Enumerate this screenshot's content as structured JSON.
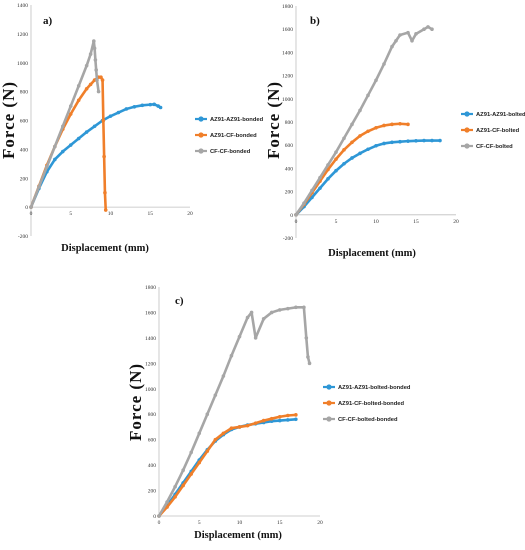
{
  "chart_data": [
    {
      "type": "line",
      "panel_label": "a)",
      "xlabel": "Displacement (mm)",
      "ylabel": "Force (N)",
      "xlim": [
        0,
        20
      ],
      "ylim": [
        -200,
        1400
      ],
      "xticks": [
        0,
        5,
        10,
        15,
        20
      ],
      "yticks": [
        -200,
        0,
        200,
        400,
        600,
        800,
        1000,
        1200,
        1400
      ],
      "legend_position": "right",
      "grid": false,
      "series": [
        {
          "name": "AZ91-AZ91-bonded",
          "color": "#2e97d6",
          "x": [
            0,
            1,
            2,
            3,
            4,
            5,
            6,
            7,
            8,
            9,
            10,
            11,
            12,
            13,
            14,
            15,
            15.5,
            16,
            16.3
          ],
          "y": [
            0,
            130,
            245,
            330,
            385,
            430,
            475,
            520,
            560,
            600,
            630,
            655,
            680,
            695,
            705,
            710,
            712,
            700,
            690
          ]
        },
        {
          "name": "AZ91-CF-bonded",
          "color": "#f07f2a",
          "x": [
            0,
            1,
            2,
            3,
            4,
            5,
            6,
            7,
            7.5,
            8,
            8.5,
            8.8,
            9,
            9.1,
            9.2,
            9.3,
            9.4
          ],
          "y": [
            0,
            145,
            290,
            420,
            540,
            645,
            740,
            820,
            850,
            880,
            900,
            900,
            880,
            600,
            350,
            100,
            -20
          ]
        },
        {
          "name": "CF-CF-bonded",
          "color": "#a6a6a6",
          "x": [
            0,
            1,
            2,
            3,
            4,
            5,
            6,
            7,
            7.5,
            7.9,
            8,
            8.1,
            8.2,
            8.3,
            8.5
          ],
          "y": [
            0,
            140,
            280,
            420,
            560,
            700,
            840,
            980,
            1060,
            1150,
            1100,
            1020,
            950,
            880,
            800
          ]
        }
      ]
    },
    {
      "type": "line",
      "panel_label": "b)",
      "xlabel": "Displacement (mm)",
      "ylabel": "Force (N)",
      "xlim": [
        0,
        20
      ],
      "ylim": [
        -200,
        1800
      ],
      "xticks": [
        0,
        5,
        10,
        15,
        20
      ],
      "yticks": [
        -200,
        0,
        200,
        400,
        600,
        800,
        1000,
        1200,
        1400,
        1600,
        1800
      ],
      "legend_position": "right",
      "grid": false,
      "series": [
        {
          "name": "AZ91-AZ91-bolted",
          "color": "#2e97d6",
          "x": [
            0,
            1,
            2,
            3,
            4,
            5,
            6,
            7,
            8,
            9,
            10,
            11,
            12,
            13,
            14,
            15,
            16,
            17,
            18
          ],
          "y": [
            0,
            70,
            150,
            230,
            310,
            380,
            440,
            490,
            530,
            565,
            595,
            615,
            625,
            630,
            635,
            638,
            640,
            640,
            640
          ]
        },
        {
          "name": "AZ91-CF-bolted",
          "color": "#f07f2a",
          "x": [
            0,
            1,
            2,
            3,
            4,
            5,
            6,
            7,
            8,
            9,
            10,
            11,
            12,
            13,
            14
          ],
          "y": [
            0,
            90,
            190,
            290,
            390,
            480,
            560,
            625,
            680,
            720,
            750,
            770,
            780,
            785,
            780
          ]
        },
        {
          "name": "CF-CF-bolted",
          "color": "#a6a6a6",
          "x": [
            0,
            1,
            2,
            3,
            4,
            5,
            6,
            7,
            8,
            9,
            10,
            11,
            12,
            12.5,
            13,
            14,
            14.5,
            15,
            16,
            16.5,
            17
          ],
          "y": [
            0,
            100,
            210,
            320,
            430,
            540,
            660,
            780,
            900,
            1030,
            1160,
            1300,
            1450,
            1500,
            1550,
            1570,
            1500,
            1560,
            1600,
            1620,
            1600
          ]
        }
      ]
    },
    {
      "type": "line",
      "panel_label": "c)",
      "xlabel": "Displacement (mm)",
      "ylabel": "Force (N)",
      "xlim": [
        0,
        20
      ],
      "ylim": [
        0,
        1800
      ],
      "xticks": [
        0,
        5,
        10,
        15,
        20
      ],
      "yticks": [
        0,
        200,
        400,
        600,
        800,
        1000,
        1200,
        1400,
        1600,
        1800
      ],
      "legend_position": "right",
      "grid": false,
      "series": [
        {
          "name": "AZ91-AZ91-bolted-bonded",
          "color": "#2e97d6",
          "x": [
            0,
            1,
            2,
            3,
            4,
            5,
            6,
            7,
            8,
            9,
            10,
            11,
            12,
            13,
            14,
            15,
            16,
            17
          ],
          "y": [
            0,
            80,
            170,
            260,
            350,
            440,
            520,
            590,
            640,
            680,
            700,
            715,
            725,
            735,
            745,
            750,
            755,
            760
          ]
        },
        {
          "name": "AZ91-CF-bolted-bonded",
          "color": "#f07f2a",
          "x": [
            0,
            1,
            2,
            3,
            4,
            5,
            6,
            7,
            8,
            9,
            10,
            11,
            12,
            13,
            14,
            15,
            16,
            17
          ],
          "y": [
            0,
            70,
            150,
            240,
            330,
            420,
            510,
            600,
            650,
            690,
            700,
            710,
            730,
            750,
            765,
            780,
            790,
            795
          ]
        },
        {
          "name": "CF-CF-bolted-bonded",
          "color": "#a6a6a6",
          "x": [
            0,
            1,
            2,
            3,
            4,
            5,
            6,
            7,
            8,
            9,
            10,
            11,
            11.5,
            12,
            13,
            14,
            15,
            16,
            17,
            18,
            18.3,
            18.5,
            18.7
          ],
          "y": [
            0,
            110,
            230,
            360,
            500,
            650,
            800,
            950,
            1100,
            1260,
            1410,
            1560,
            1600,
            1400,
            1550,
            1600,
            1620,
            1630,
            1640,
            1640,
            1400,
            1250,
            1200
          ]
        }
      ]
    }
  ]
}
